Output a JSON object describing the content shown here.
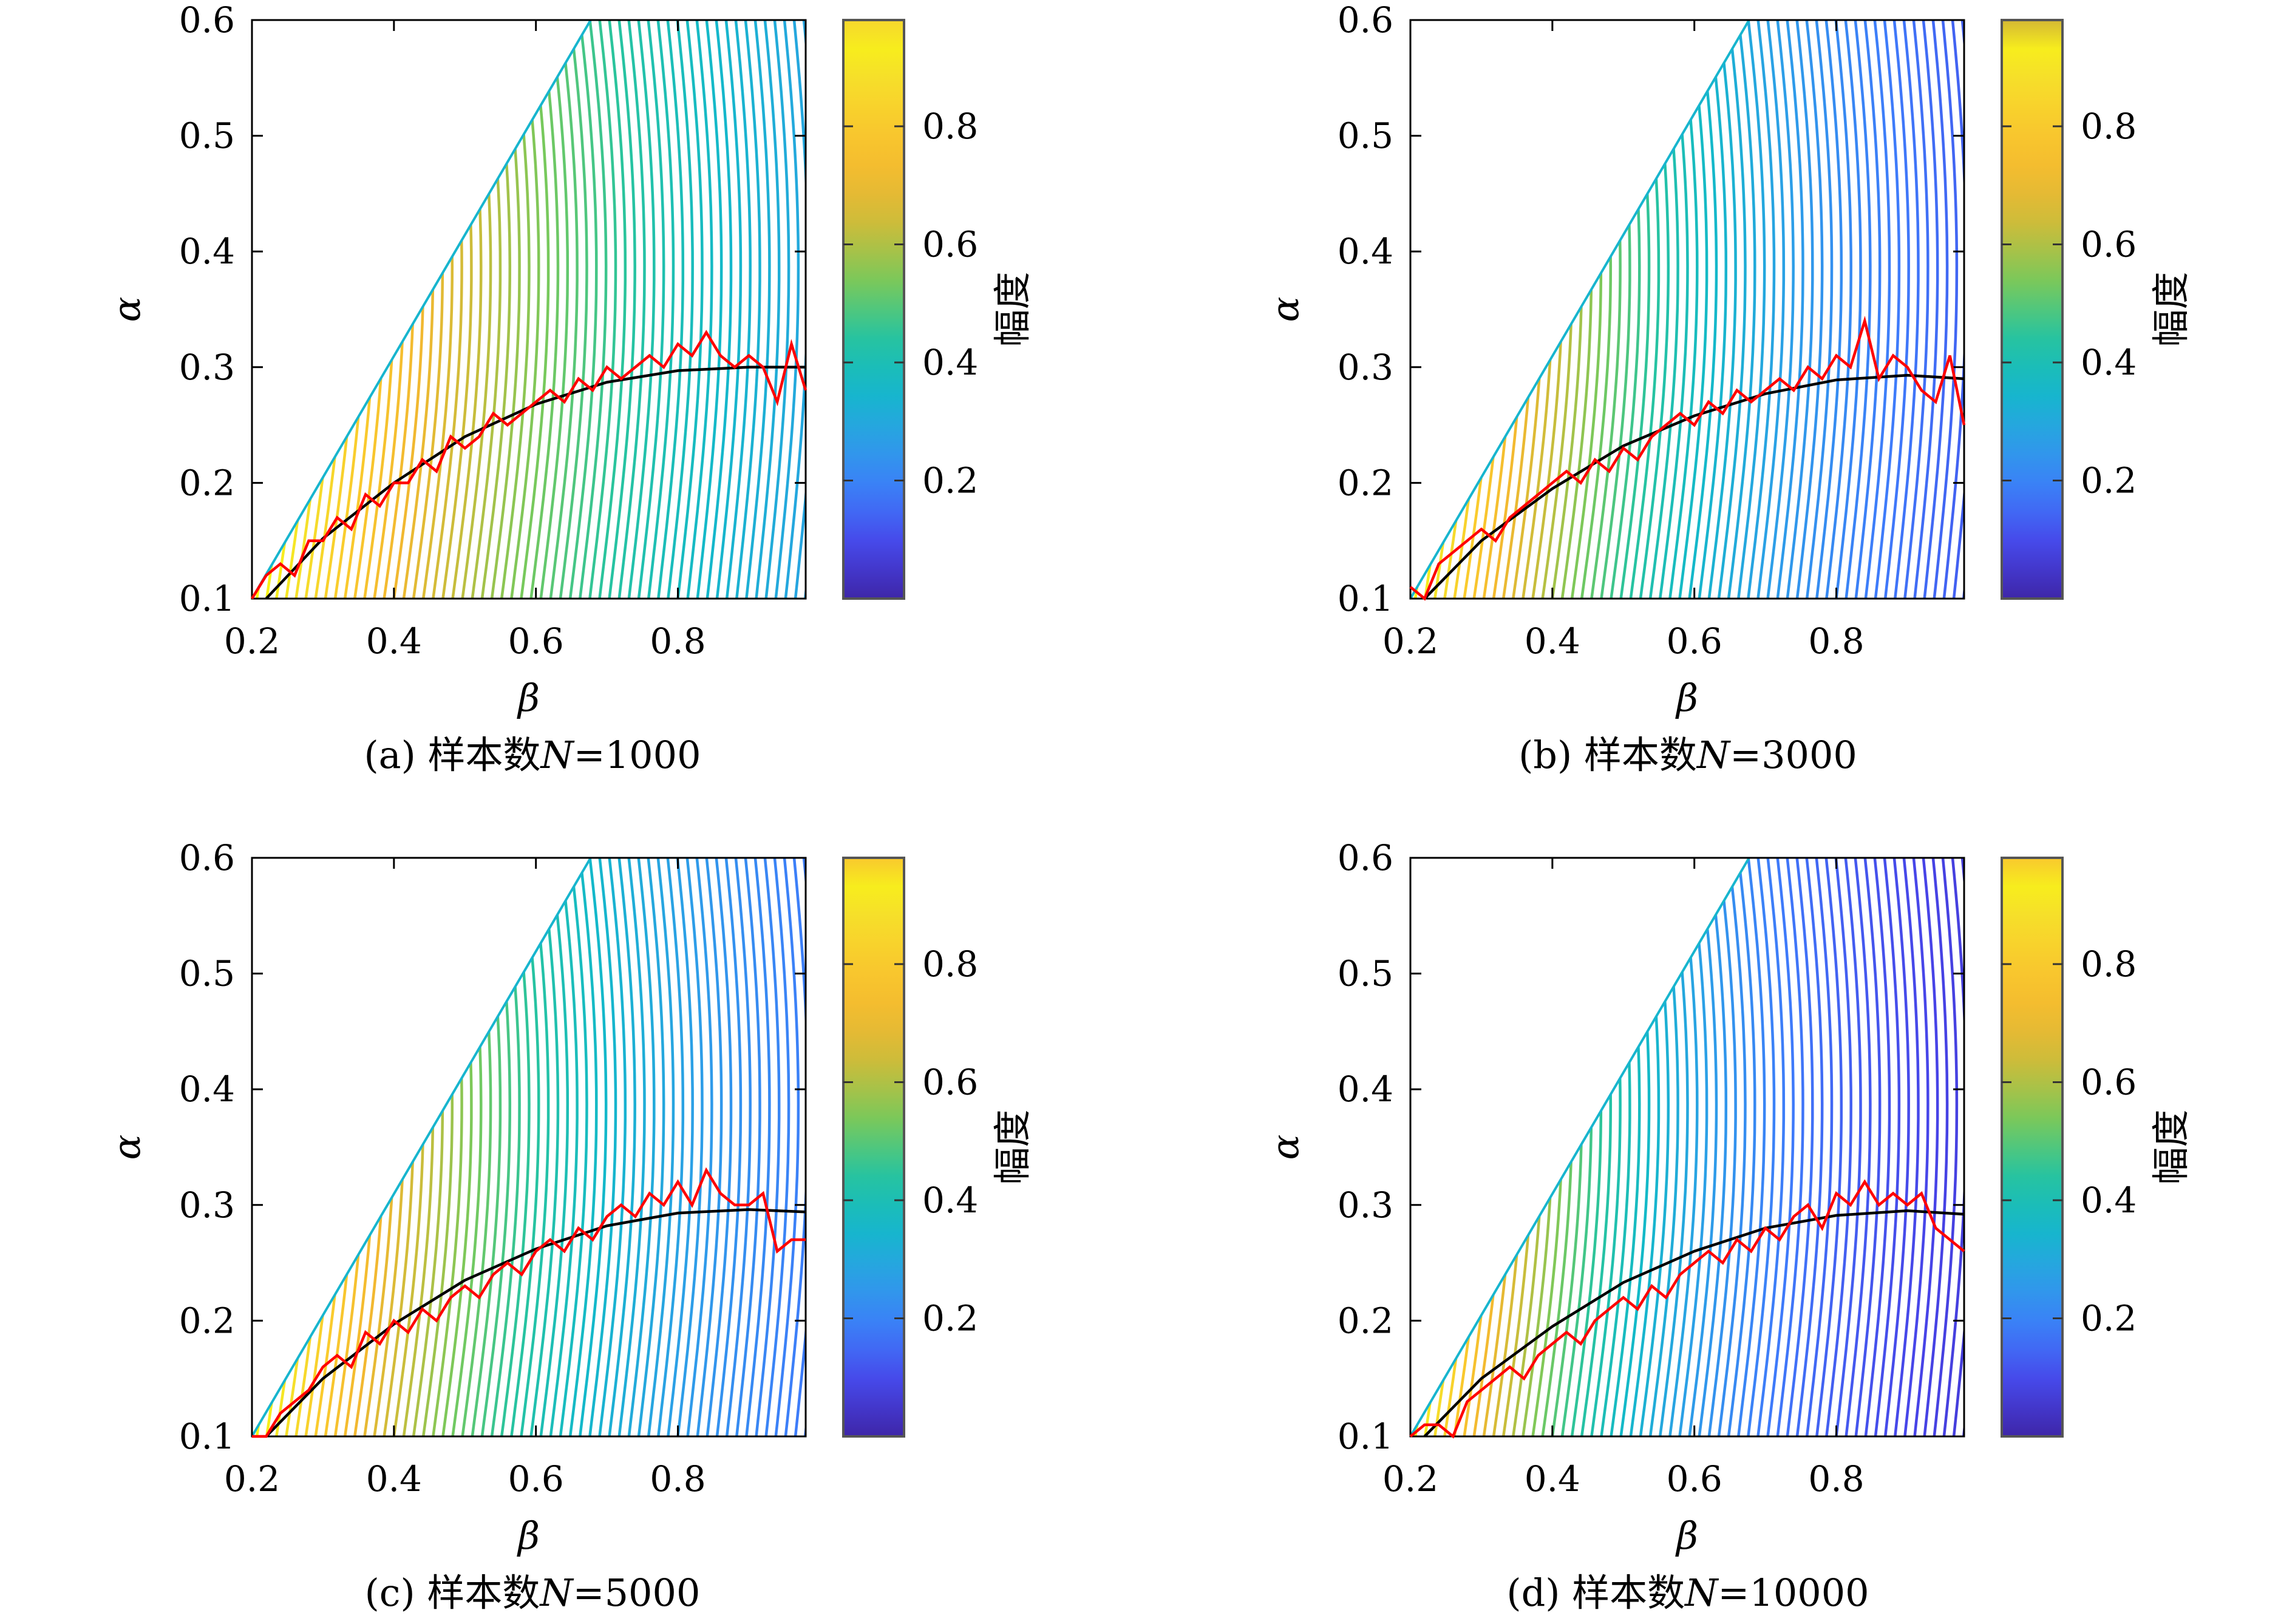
{
  "colorbar_label": "幅度",
  "colormap": [
    "#3e26a8",
    "#4744e8",
    "#3e7bfa",
    "#2c9fe7",
    "#13b9c9",
    "#28c49e",
    "#77c95c",
    "#c6bd3c",
    "#f2b830",
    "#faca2d",
    "#f5e12a",
    "#f9fb0e"
  ],
  "contour_line_count": 58,
  "reference_curve_color": "#000000",
  "estimated_curve_color": "#ff0000",
  "chart_data": [
    {
      "type": "contour",
      "caption_prefix": "(a) 样本数",
      "caption_var": "N",
      "caption_value": "=1000",
      "xlabel": "β",
      "ylabel": "α",
      "xlim": [
        0.2,
        0.98
      ],
      "ylim": [
        0.1,
        0.6
      ],
      "xticks": [
        "0.2",
        "0.4",
        "0.6",
        "0.8"
      ],
      "yticks": [
        "0.1",
        "0.2",
        "0.3",
        "0.4",
        "0.5",
        "0.6"
      ],
      "colorbar_ticks": [
        "0.2",
        "0.4",
        "0.6",
        "0.8"
      ],
      "colorbar_max": 0.98,
      "colorbar_top_color": "#f6d72d",
      "amplitude_decay": 1.6,
      "reference_curve": {
        "beta": [
          0.22,
          0.3,
          0.4,
          0.5,
          0.6,
          0.7,
          0.8,
          0.9,
          0.98
        ],
        "alpha": [
          0.1,
          0.152,
          0.2,
          0.24,
          0.268,
          0.287,
          0.297,
          0.3,
          0.3
        ]
      },
      "estimated_curve": {
        "beta": [
          0.2,
          0.22,
          0.24,
          0.26,
          0.28,
          0.3,
          0.32,
          0.34,
          0.36,
          0.38,
          0.4,
          0.42,
          0.44,
          0.46,
          0.48,
          0.5,
          0.52,
          0.54,
          0.56,
          0.58,
          0.6,
          0.62,
          0.64,
          0.66,
          0.68,
          0.7,
          0.72,
          0.74,
          0.76,
          0.78,
          0.8,
          0.82,
          0.84,
          0.86,
          0.88,
          0.9,
          0.92,
          0.94,
          0.96,
          0.98
        ],
        "alpha": [
          0.1,
          0.12,
          0.13,
          0.12,
          0.15,
          0.15,
          0.17,
          0.16,
          0.19,
          0.18,
          0.2,
          0.2,
          0.22,
          0.21,
          0.24,
          0.23,
          0.24,
          0.26,
          0.25,
          0.26,
          0.27,
          0.28,
          0.27,
          0.29,
          0.28,
          0.3,
          0.29,
          0.3,
          0.31,
          0.3,
          0.32,
          0.31,
          0.33,
          0.31,
          0.3,
          0.31,
          0.3,
          0.27,
          0.32,
          0.28
        ]
      }
    },
    {
      "type": "contour",
      "caption_prefix": "(b) 样本数",
      "caption_var": "N",
      "caption_value": "=3000",
      "xlabel": "β",
      "ylabel": "α",
      "xlim": [
        0.2,
        0.98
      ],
      "ylim": [
        0.1,
        0.6
      ],
      "xticks": [
        "0.2",
        "0.4",
        "0.6",
        "0.8"
      ],
      "yticks": [
        "0.1",
        "0.2",
        "0.3",
        "0.4",
        "0.5",
        "0.6"
      ],
      "colorbar_ticks": [
        "0.2",
        "0.4",
        "0.6",
        "0.8"
      ],
      "colorbar_max": 0.98,
      "colorbar_top_color": "#d4b834",
      "amplitude_decay": 2.6,
      "reference_curve": {
        "beta": [
          0.22,
          0.3,
          0.4,
          0.5,
          0.6,
          0.7,
          0.8,
          0.9,
          0.98
        ],
        "alpha": [
          0.1,
          0.15,
          0.195,
          0.232,
          0.258,
          0.277,
          0.289,
          0.293,
          0.29
        ]
      },
      "estimated_curve": {
        "beta": [
          0.2,
          0.22,
          0.24,
          0.26,
          0.28,
          0.3,
          0.32,
          0.34,
          0.36,
          0.38,
          0.4,
          0.42,
          0.44,
          0.46,
          0.48,
          0.5,
          0.52,
          0.54,
          0.56,
          0.58,
          0.6,
          0.62,
          0.64,
          0.66,
          0.68,
          0.7,
          0.72,
          0.74,
          0.76,
          0.78,
          0.8,
          0.82,
          0.84,
          0.86,
          0.88,
          0.9,
          0.92,
          0.94,
          0.96,
          0.98
        ],
        "alpha": [
          0.11,
          0.1,
          0.13,
          0.14,
          0.15,
          0.16,
          0.15,
          0.17,
          0.18,
          0.19,
          0.2,
          0.21,
          0.2,
          0.22,
          0.21,
          0.23,
          0.22,
          0.24,
          0.25,
          0.26,
          0.25,
          0.27,
          0.26,
          0.28,
          0.27,
          0.28,
          0.29,
          0.28,
          0.3,
          0.29,
          0.31,
          0.3,
          0.34,
          0.29,
          0.31,
          0.3,
          0.28,
          0.27,
          0.31,
          0.25
        ]
      }
    },
    {
      "type": "contour",
      "caption_prefix": "(c) 样本数",
      "caption_var": "N",
      "caption_value": "=5000",
      "xlabel": "β",
      "ylabel": "α",
      "xlim": [
        0.2,
        0.98
      ],
      "ylim": [
        0.1,
        0.6
      ],
      "xticks": [
        "0.2",
        "0.4",
        "0.6",
        "0.8"
      ],
      "yticks": [
        "0.1",
        "0.2",
        "0.3",
        "0.4",
        "0.5",
        "0.6"
      ],
      "colorbar_ticks": [
        "0.2",
        "0.4",
        "0.6",
        "0.8"
      ],
      "colorbar_max": 0.98,
      "colorbar_top_color": "#f9c92e",
      "amplitude_decay": 2.2,
      "reference_curve": {
        "beta": [
          0.22,
          0.3,
          0.4,
          0.5,
          0.6,
          0.7,
          0.8,
          0.9,
          0.98
        ],
        "alpha": [
          0.1,
          0.15,
          0.197,
          0.235,
          0.262,
          0.282,
          0.293,
          0.296,
          0.294
        ]
      },
      "estimated_curve": {
        "beta": [
          0.2,
          0.22,
          0.24,
          0.26,
          0.28,
          0.3,
          0.32,
          0.34,
          0.36,
          0.38,
          0.4,
          0.42,
          0.44,
          0.46,
          0.48,
          0.5,
          0.52,
          0.54,
          0.56,
          0.58,
          0.6,
          0.62,
          0.64,
          0.66,
          0.68,
          0.7,
          0.72,
          0.74,
          0.76,
          0.78,
          0.8,
          0.82,
          0.84,
          0.86,
          0.88,
          0.9,
          0.92,
          0.94,
          0.96,
          0.98
        ],
        "alpha": [
          0.1,
          0.1,
          0.12,
          0.13,
          0.14,
          0.16,
          0.17,
          0.16,
          0.19,
          0.18,
          0.2,
          0.19,
          0.21,
          0.2,
          0.22,
          0.23,
          0.22,
          0.24,
          0.25,
          0.24,
          0.26,
          0.27,
          0.26,
          0.28,
          0.27,
          0.29,
          0.3,
          0.29,
          0.31,
          0.3,
          0.32,
          0.3,
          0.33,
          0.31,
          0.3,
          0.3,
          0.31,
          0.26,
          0.27,
          0.27
        ]
      }
    },
    {
      "type": "contour",
      "caption_prefix": "(d) 样本数",
      "caption_var": "N",
      "caption_value": "=10000",
      "xlabel": "β",
      "ylabel": "α",
      "xlim": [
        0.2,
        0.98
      ],
      "ylim": [
        0.1,
        0.6
      ],
      "xticks": [
        "0.2",
        "0.4",
        "0.6",
        "0.8"
      ],
      "yticks": [
        "0.1",
        "0.2",
        "0.3",
        "0.4",
        "0.5",
        "0.6"
      ],
      "colorbar_ticks": [
        "0.2",
        "0.4",
        "0.6",
        "0.8"
      ],
      "colorbar_max": 0.98,
      "colorbar_top_color": "#f9c92e",
      "amplitude_decay": 3.4,
      "reference_curve": {
        "beta": [
          0.22,
          0.3,
          0.4,
          0.5,
          0.6,
          0.7,
          0.8,
          0.9,
          0.98
        ],
        "alpha": [
          0.1,
          0.15,
          0.195,
          0.233,
          0.26,
          0.28,
          0.291,
          0.295,
          0.292
        ]
      },
      "estimated_curve": {
        "beta": [
          0.2,
          0.22,
          0.24,
          0.26,
          0.28,
          0.3,
          0.32,
          0.34,
          0.36,
          0.38,
          0.4,
          0.42,
          0.44,
          0.46,
          0.48,
          0.5,
          0.52,
          0.54,
          0.56,
          0.58,
          0.6,
          0.62,
          0.64,
          0.66,
          0.68,
          0.7,
          0.72,
          0.74,
          0.76,
          0.78,
          0.8,
          0.82,
          0.84,
          0.86,
          0.88,
          0.9,
          0.92,
          0.94,
          0.96,
          0.98
        ],
        "alpha": [
          0.1,
          0.11,
          0.11,
          0.1,
          0.13,
          0.14,
          0.15,
          0.16,
          0.15,
          0.17,
          0.18,
          0.19,
          0.18,
          0.2,
          0.21,
          0.22,
          0.21,
          0.23,
          0.22,
          0.24,
          0.25,
          0.26,
          0.25,
          0.27,
          0.26,
          0.28,
          0.27,
          0.29,
          0.3,
          0.28,
          0.31,
          0.3,
          0.32,
          0.3,
          0.31,
          0.3,
          0.31,
          0.28,
          0.27,
          0.26
        ]
      }
    }
  ]
}
